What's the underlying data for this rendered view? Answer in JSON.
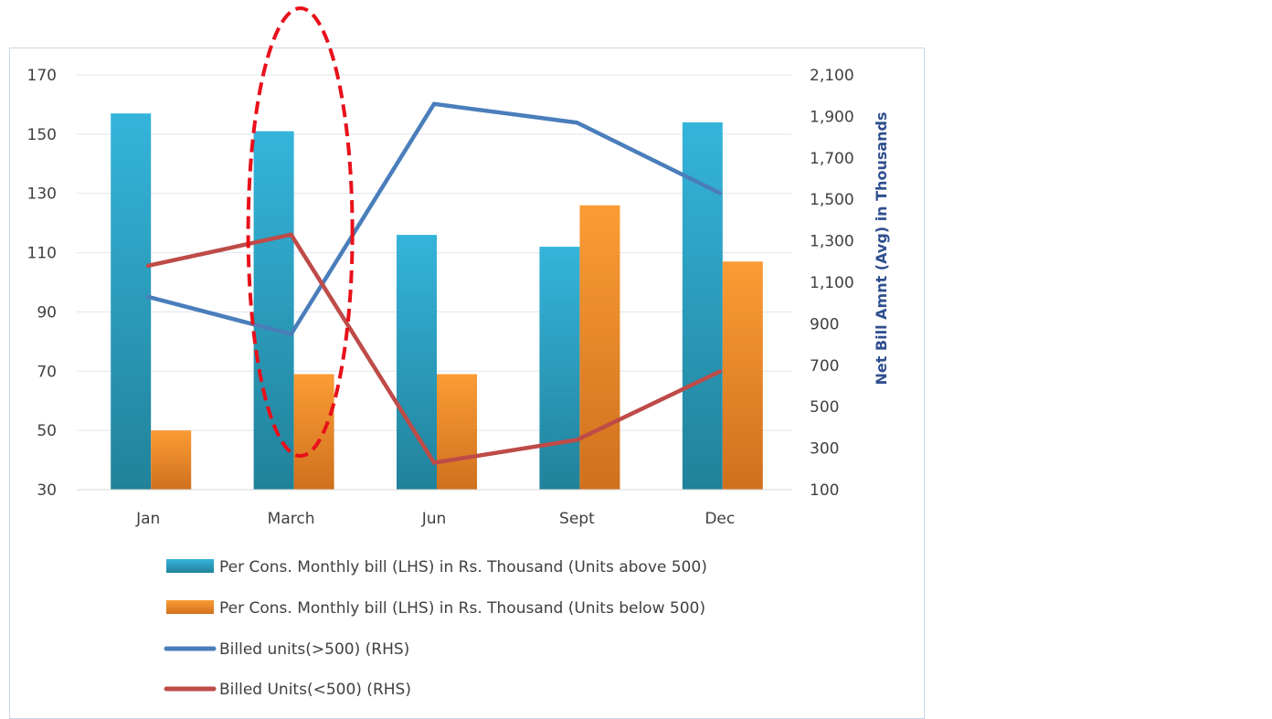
{
  "chart_data": {
    "type": "bar",
    "categories": [
      "Jan",
      "March",
      "Jun",
      "Sept",
      "Dec"
    ],
    "series": [
      {
        "name": "Per Cons. Monthly bill (LHS) in Rs. Thousand (Units above 500)",
        "kind": "bar",
        "axis": "left",
        "color": "#2fa8cf",
        "values": [
          157,
          151,
          116,
          112,
          154
        ]
      },
      {
        "name": "Per Cons. Monthly bill (LHS) in Rs. Thousand (Units below 500)",
        "kind": "bar",
        "axis": "left",
        "color": "#f7962d",
        "values": [
          50,
          69,
          69,
          126,
          107
        ]
      },
      {
        "name": "Billed units(>500) (RHS)",
        "kind": "line",
        "axis": "right",
        "color": "#4a7ebb",
        "values": [
          1030,
          850,
          1960,
          1870,
          1530
        ]
      },
      {
        "name": "Billed Units(<500) (RHS)",
        "kind": "line",
        "axis": "right",
        "color": "#be4b48",
        "values": [
          1180,
          1330,
          230,
          340,
          670
        ]
      }
    ],
    "y_left": {
      "min": 30,
      "max": 170,
      "ticks": [
        30,
        50,
        70,
        90,
        110,
        130,
        150,
        170
      ]
    },
    "y_right": {
      "min": 100,
      "max": 2100,
      "ticks": [
        "100",
        "300",
        "500",
        "700",
        "900",
        "1,100",
        "1,300",
        "1,500",
        "1,700",
        "1,900",
        "2,100"
      ],
      "label": "Net Bill Amnt (Avg) in Thousands"
    },
    "grid": true,
    "legend_position": "bottom",
    "highlight": {
      "category": "March",
      "shape": "dashed-ellipse",
      "color": "#e8101a"
    }
  }
}
